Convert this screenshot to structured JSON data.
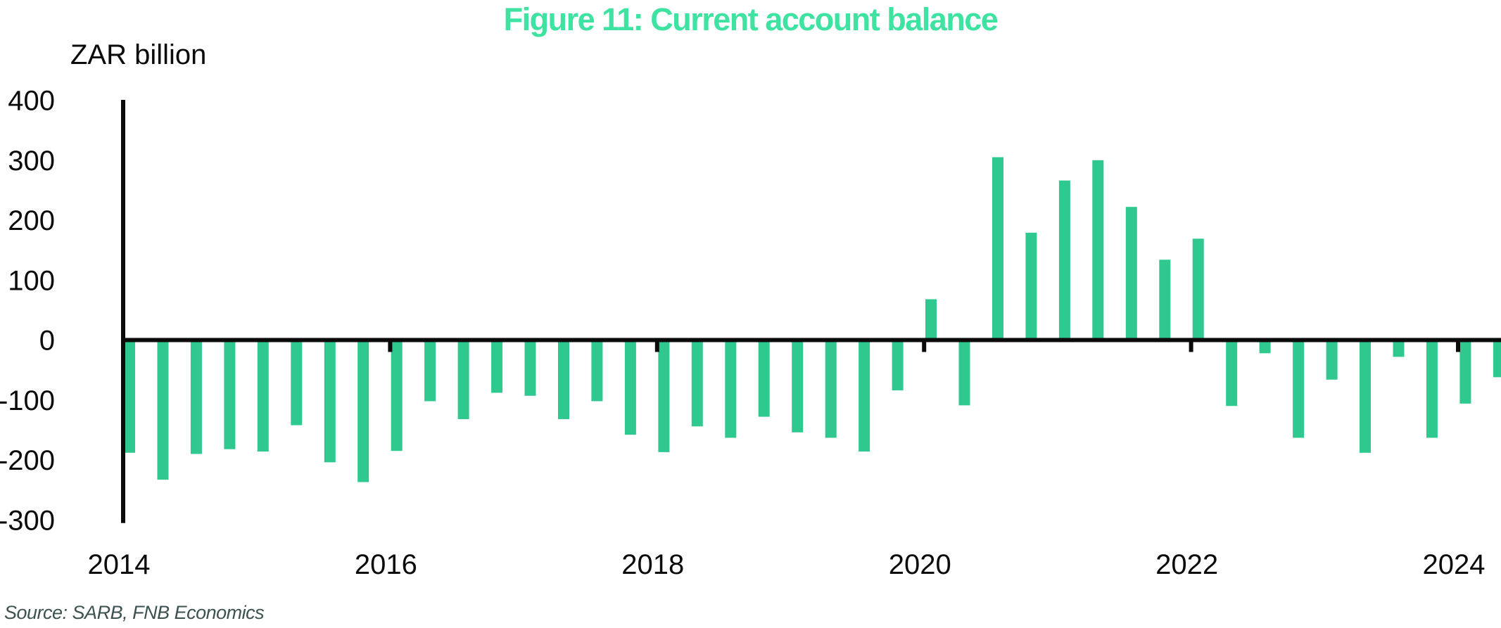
{
  "title": "Figure 11: Current account balance",
  "y_axis_unit": "ZAR billion",
  "source_note": "Source: SARB, FNB Economics",
  "colors": {
    "bar": "#2fc98f",
    "title": "#3ee2a1",
    "axis": "#0b0b0b",
    "text": "#0b0b0b",
    "source": "#3e5151",
    "background": "#ffffff"
  },
  "chart_data": {
    "type": "bar",
    "title": "Figure 11: Current account balance",
    "ylabel": "ZAR billion",
    "xlabel": "",
    "x": [
      "2014Q1",
      "2014Q2",
      "2014Q3",
      "2014Q4",
      "2015Q1",
      "2015Q2",
      "2015Q3",
      "2015Q4",
      "2016Q1",
      "2016Q2",
      "2016Q3",
      "2016Q4",
      "2017Q1",
      "2017Q2",
      "2017Q3",
      "2017Q4",
      "2018Q1",
      "2018Q2",
      "2018Q3",
      "2018Q4",
      "2019Q1",
      "2019Q2",
      "2019Q3",
      "2019Q4",
      "2020Q1",
      "2020Q2",
      "2020Q3",
      "2020Q4",
      "2021Q1",
      "2021Q2",
      "2021Q3",
      "2021Q4",
      "2022Q1",
      "2022Q2",
      "2022Q3",
      "2022Q4",
      "2023Q1",
      "2023Q2",
      "2023Q3",
      "2023Q4",
      "2024Q1",
      "2024Q2"
    ],
    "values": [
      -188,
      -233,
      -190,
      -182,
      -186,
      -142,
      -204,
      -237,
      -185,
      -102,
      -132,
      -88,
      -93,
      -132,
      -102,
      -158,
      -187,
      -144,
      -163,
      -128,
      -154,
      -163,
      -186,
      -84,
      68,
      -109,
      305,
      179,
      266,
      300,
      222,
      134,
      169,
      -110,
      -22,
      -163,
      -66,
      -188,
      -28,
      -163,
      -106,
      -62
    ],
    "x_tick_labels": [
      "2014",
      "2016",
      "2018",
      "2020",
      "2022",
      "2024"
    ],
    "y_ticks": [
      400,
      300,
      200,
      100,
      0,
      -100,
      -200,
      -300
    ],
    "ylim": [
      -300,
      400
    ],
    "grid": false,
    "legend": false,
    "note": "last bar (2024Q2) clipped at right edge"
  }
}
